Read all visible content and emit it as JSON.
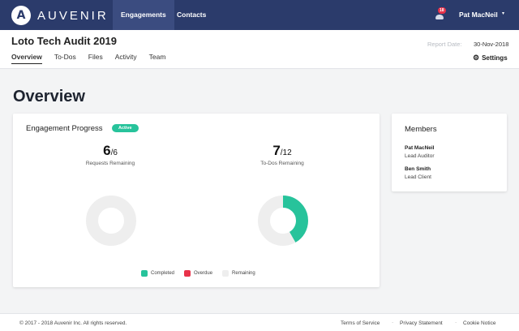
{
  "brand": {
    "logo_letter": "A",
    "name": "AUVENIR"
  },
  "nav": {
    "tabs": [
      {
        "label": "Engagements"
      },
      {
        "label": "Contacts"
      }
    ]
  },
  "notifications": {
    "count": "18"
  },
  "user": {
    "name": "Pat MacNeil"
  },
  "project": {
    "title": "Loto Tech Audit 2019",
    "tabs": [
      {
        "label": "Overview"
      },
      {
        "label": "To-Dos"
      },
      {
        "label": "Files"
      },
      {
        "label": "Activity"
      },
      {
        "label": "Team"
      }
    ],
    "report_date_label": "Report Date:",
    "report_date": "30-Nov-2018",
    "settings_label": "Settings"
  },
  "page": {
    "heading": "Overview"
  },
  "progress": {
    "title": "Engagement Progress",
    "status": "Active",
    "requests": {
      "value": "6",
      "total": "/6",
      "label": "Requests Remaining"
    },
    "todos": {
      "value": "7",
      "total": "/12",
      "label": "To-Dos Remaining"
    },
    "legend": [
      {
        "label": "Completed"
      },
      {
        "label": "Overdue"
      },
      {
        "label": "Remaining"
      }
    ]
  },
  "chart_data": [
    {
      "type": "pie",
      "labels": [
        "Completed",
        "Overdue",
        "Remaining"
      ],
      "values": [
        0,
        0,
        6
      ],
      "colors": [
        "#27c39b",
        "#e8324a",
        "#eeeeee"
      ]
    },
    {
      "type": "pie",
      "labels": [
        "Completed",
        "Overdue",
        "Remaining"
      ],
      "values": [
        5,
        0,
        7
      ],
      "colors": [
        "#27c39b",
        "#e8324a",
        "#eeeeee"
      ]
    }
  ],
  "members": {
    "title": "Members",
    "list": [
      {
        "name": "Pat MacNeil",
        "role": "Lead Auditor"
      },
      {
        "name": "Ben Smith",
        "role": "Lead Client"
      }
    ]
  },
  "footer": {
    "copyright": "© 2017 - 2018 Auvenir Inc. All rights reserved.",
    "links": [
      {
        "label": "Terms of Service"
      },
      {
        "label": "Privacy Statement"
      },
      {
        "label": "Cookie Notice"
      }
    ]
  },
  "colors": {
    "navbar": "#2b3b6b",
    "completed": "#27c39b",
    "overdue": "#e8324a",
    "remaining": "#eeeeee"
  }
}
